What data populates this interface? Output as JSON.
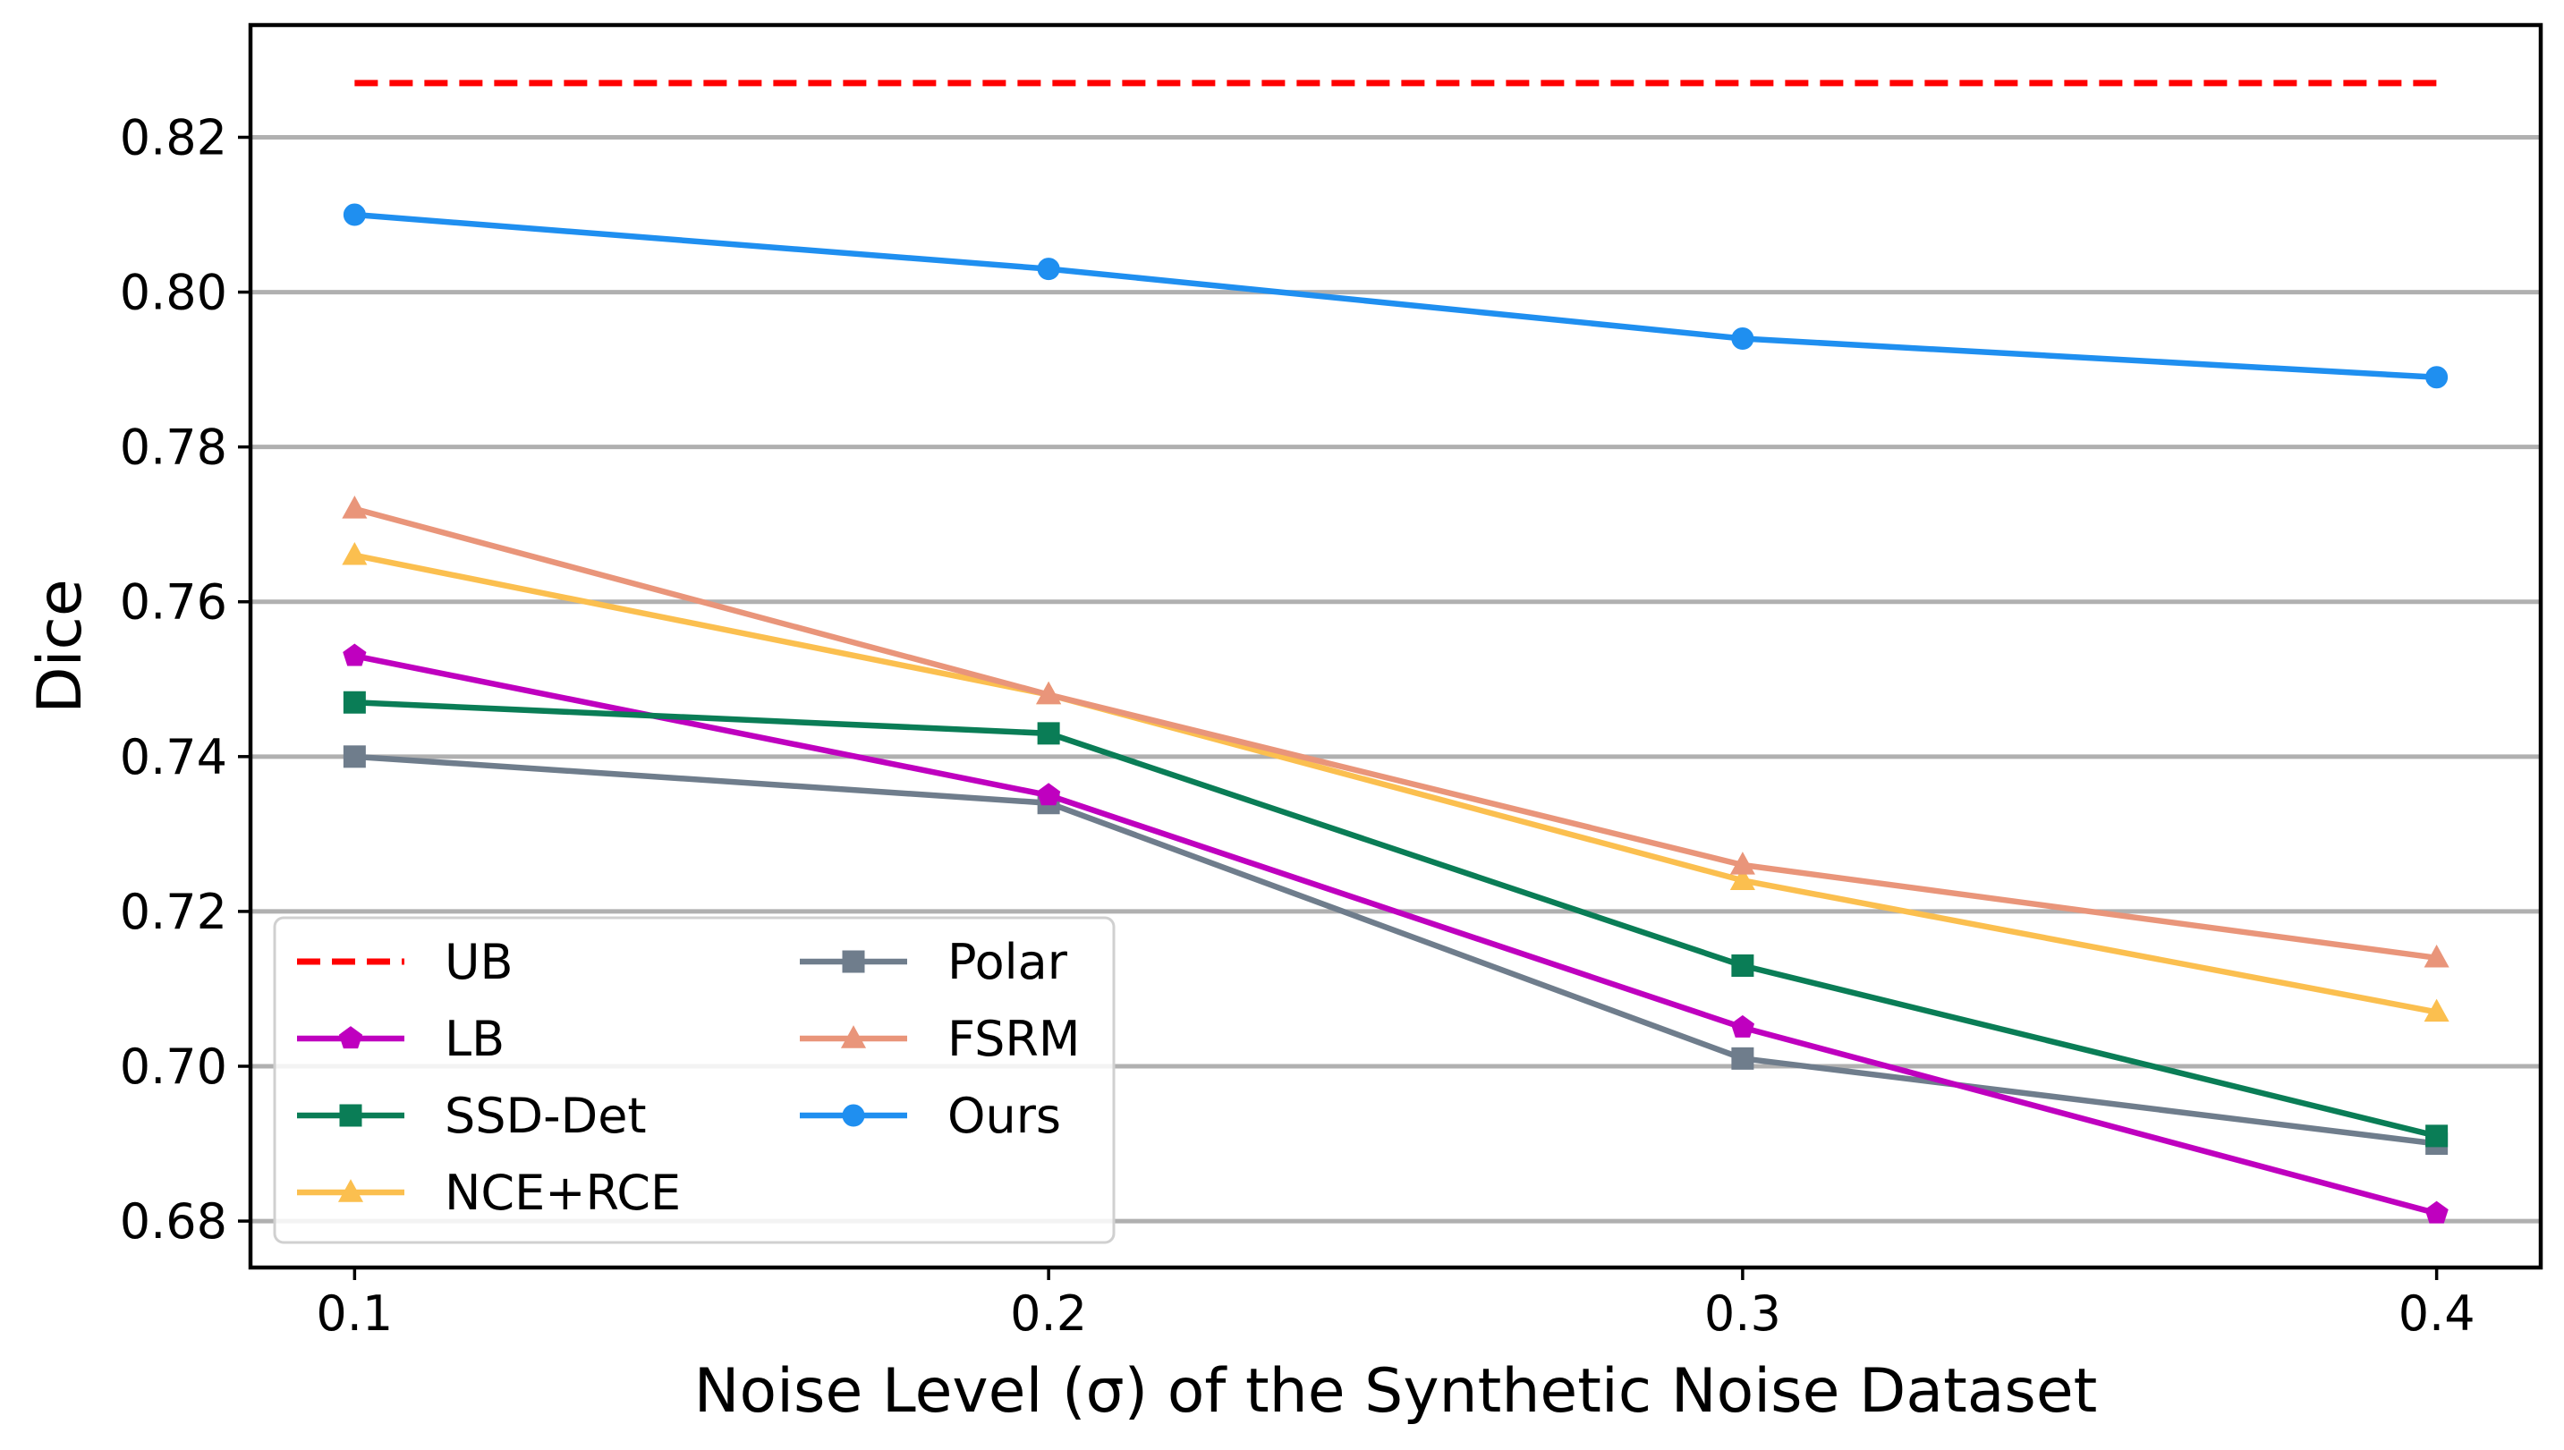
{
  "chart_data": {
    "type": "line",
    "title": "",
    "xlabel": "Noise Level (σ) of the Synthetic Noise Dataset",
    "ylabel": "Dice",
    "x": [
      0.1,
      0.2,
      0.3,
      0.4
    ],
    "xticks": [
      "0.1",
      "0.2",
      "0.3",
      "0.4"
    ],
    "yticks": [
      0.68,
      0.7,
      0.72,
      0.74,
      0.76,
      0.78,
      0.8,
      0.82
    ],
    "ytick_labels": [
      "0.68",
      "0.70",
      "0.72",
      "0.74",
      "0.76",
      "0.78",
      "0.80",
      "0.82"
    ],
    "xlim": [
      0.085,
      0.415
    ],
    "ylim": [
      0.674,
      0.8345
    ],
    "grid": "horizontal",
    "legend_position": "lower-left",
    "series": [
      {
        "name": "UB",
        "values": [
          0.827,
          0.827,
          0.827,
          0.827
        ],
        "color": "#ff0000",
        "style": "dashed",
        "marker": "none"
      },
      {
        "name": "LB",
        "values": [
          0.753,
          0.735,
          0.705,
          0.681
        ],
        "color": "#bf00bf",
        "style": "solid",
        "marker": "pentagon"
      },
      {
        "name": "SSD-Det",
        "values": [
          0.747,
          0.743,
          0.713,
          0.691
        ],
        "color": "#0a7d56",
        "style": "solid",
        "marker": "square"
      },
      {
        "name": "NCE+RCE",
        "values": [
          0.766,
          0.748,
          0.724,
          0.707
        ],
        "color": "#fbbf4f",
        "style": "solid",
        "marker": "triangle"
      },
      {
        "name": "Polar",
        "values": [
          0.74,
          0.734,
          0.701,
          0.69
        ],
        "color": "#6f7d8c",
        "style": "solid",
        "marker": "square"
      },
      {
        "name": "FSRM",
        "values": [
          0.772,
          0.748,
          0.726,
          0.714
        ],
        "color": "#e9957a",
        "style": "solid",
        "marker": "triangle"
      },
      {
        "name": "Ours",
        "values": [
          0.81,
          0.803,
          0.794,
          0.789
        ],
        "color": "#1f8ff0",
        "style": "solid",
        "marker": "circle"
      }
    ]
  }
}
